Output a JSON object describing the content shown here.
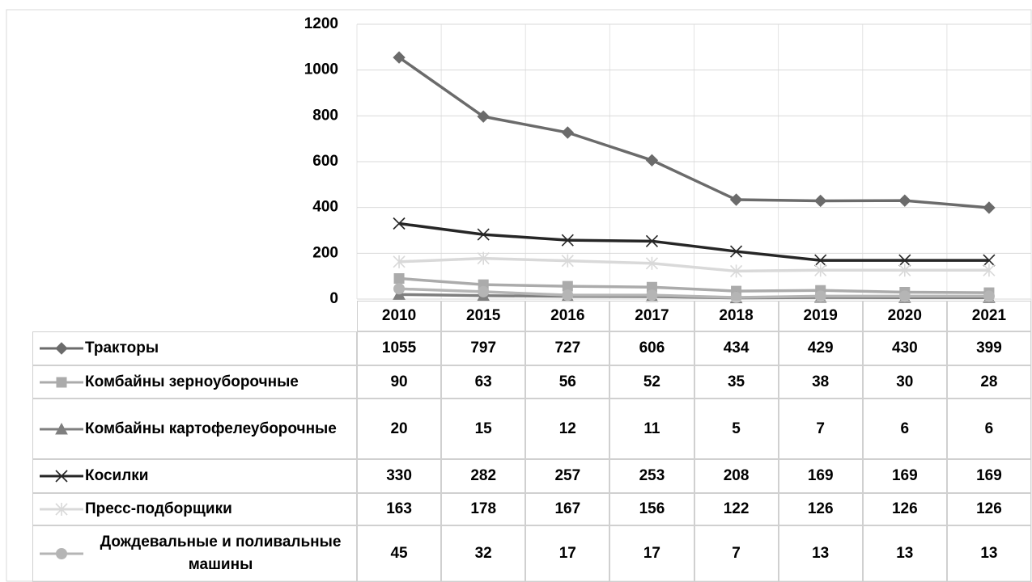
{
  "chart_data": {
    "type": "line",
    "categories": [
      "2010",
      "2015",
      "2016",
      "2017",
      "2018",
      "2019",
      "2020",
      "2021"
    ],
    "ylim": [
      0,
      1200
    ],
    "yticks": [
      0,
      200,
      400,
      600,
      800,
      1000,
      1200
    ],
    "grid": true,
    "series": [
      {
        "name": "Тракторы",
        "color": "#6b6b6b",
        "marker": "diamond",
        "values": [
          1055,
          797,
          727,
          606,
          434,
          429,
          430,
          399
        ]
      },
      {
        "name": "Комбайны зерноуборочные",
        "color": "#ababab",
        "marker": "square",
        "values": [
          90,
          63,
          56,
          52,
          35,
          38,
          30,
          28
        ]
      },
      {
        "name": "Комбайны картофелеуборочные",
        "color": "#7f7f7f",
        "marker": "triangle",
        "values": [
          20,
          15,
          12,
          11,
          5,
          7,
          6,
          6
        ]
      },
      {
        "name": "Косилки",
        "color": "#262626",
        "marker": "x",
        "values": [
          330,
          282,
          257,
          253,
          208,
          169,
          169,
          169
        ]
      },
      {
        "name": "Пресс-подборщики",
        "color": "#d9d9d9",
        "marker": "star",
        "values": [
          163,
          178,
          167,
          156,
          122,
          126,
          126,
          126
        ]
      },
      {
        "name": "Дождевальные и поливальные машины",
        "color": "#b5b5b5",
        "marker": "circle",
        "values": [
          45,
          32,
          17,
          17,
          7,
          13,
          13,
          13
        ]
      }
    ]
  }
}
